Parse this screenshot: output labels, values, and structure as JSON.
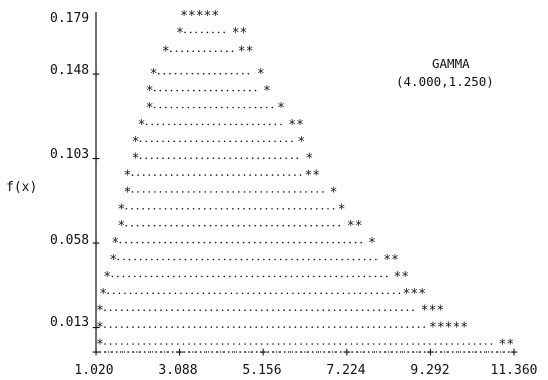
{
  "chart_data": {
    "type": "area",
    "style": "text-printer-plot",
    "title": "",
    "ylabel": "f(x)",
    "xlabel": "",
    "annotation": {
      "name": "GAMMA",
      "params": "(4.000,1.250)"
    },
    "x_ticks": [
      "1.020",
      "3.088",
      "5.156",
      "7.224",
      "9.292",
      "11.360"
    ],
    "y_ticks": [
      "0.179",
      "0.148",
      "0.103",
      "0.058",
      "0.013"
    ],
    "xlim": [
      1.02,
      11.36
    ],
    "ylim": [
      0.0,
      0.179
    ],
    "grid": false,
    "legend": "none",
    "series": [
      {
        "values": [
          {
            "y": 0.179,
            "x_left": 3.1,
            "x_right": 4.1
          },
          {
            "y": 0.17,
            "x_left": 3.0,
            "x_right": 4.55
          },
          {
            "y": 0.16,
            "x_left": 2.65,
            "x_right": 4.7
          },
          {
            "y": 0.148,
            "x_left": 2.35,
            "x_right": 5.0
          },
          {
            "y": 0.139,
            "x_left": 2.25,
            "x_right": 5.15
          },
          {
            "y": 0.13,
            "x_left": 2.25,
            "x_right": 5.5
          },
          {
            "y": 0.121,
            "x_left": 2.05,
            "x_right": 5.95
          },
          {
            "y": 0.112,
            "x_left": 1.9,
            "x_right": 6.0
          },
          {
            "y": 0.103,
            "x_left": 1.9,
            "x_right": 6.2
          },
          {
            "y": 0.094,
            "x_left": 1.7,
            "x_right": 6.35
          },
          {
            "y": 0.085,
            "x_left": 1.7,
            "x_right": 6.8
          },
          {
            "y": 0.076,
            "x_left": 1.55,
            "x_right": 7.0
          },
          {
            "y": 0.067,
            "x_left": 1.55,
            "x_right": 7.4
          },
          {
            "y": 0.058,
            "x_left": 1.4,
            "x_right": 7.75
          },
          {
            "y": 0.049,
            "x_left": 1.35,
            "x_right": 8.3
          },
          {
            "y": 0.04,
            "x_left": 1.2,
            "x_right": 8.55
          },
          {
            "y": 0.031,
            "x_left": 1.1,
            "x_right": 8.95
          },
          {
            "y": 0.022,
            "x_left": 1.02,
            "x_right": 9.4
          },
          {
            "y": 0.013,
            "x_left": 1.02,
            "x_right": 9.95
          },
          {
            "y": 0.004,
            "x_left": 1.02,
            "x_right": 11.15
          }
        ],
        "right_star_counts": [
          5,
          2,
          2,
          1,
          1,
          1,
          2,
          1,
          1,
          2,
          1,
          1,
          2,
          1,
          2,
          2,
          3,
          3,
          5,
          2
        ]
      }
    ]
  }
}
